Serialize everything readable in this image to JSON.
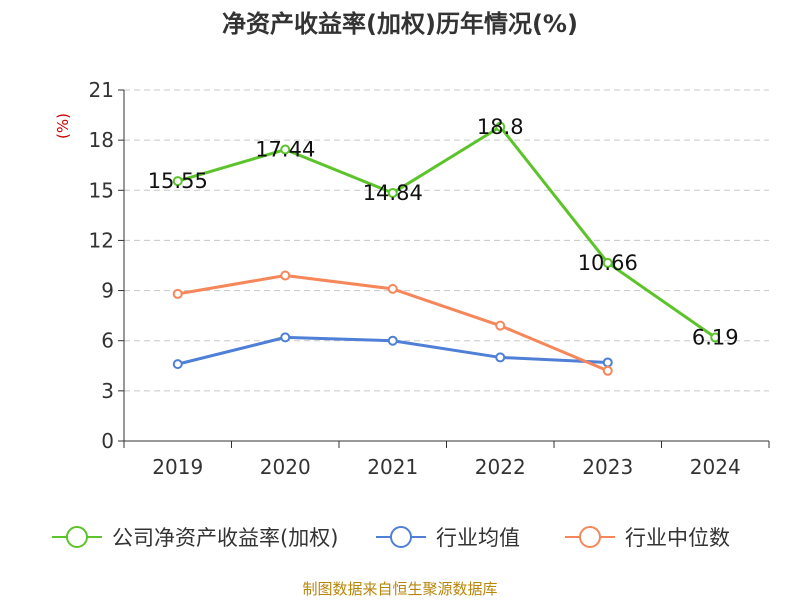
{
  "chart_data": {
    "type": "line",
    "title": "净资产收益率(加权)历年情况(%)",
    "ylabel": "(%)",
    "xlabel": "",
    "categories": [
      "2019",
      "2020",
      "2021",
      "2022",
      "2023",
      "2024"
    ],
    "ylim": [
      0,
      21
    ],
    "yticks": [
      0,
      3,
      6,
      9,
      12,
      15,
      18,
      21
    ],
    "grid": true,
    "legend_position": "bottom",
    "series": [
      {
        "name": "公司净资产收益率(加权)",
        "color": "#5cc42a",
        "values": [
          15.55,
          17.44,
          14.84,
          18.8,
          10.66,
          6.19
        ],
        "labels": [
          "15.55",
          "17.44",
          "14.84",
          "18.8",
          "10.66",
          "6.19"
        ]
      },
      {
        "name": "行业均值",
        "color": "#4f7fd6",
        "values": [
          4.6,
          6.2,
          6.0,
          5.0,
          4.7,
          null
        ]
      },
      {
        "name": "行业中位数",
        "color": "#f5875a",
        "values": [
          8.8,
          9.9,
          9.1,
          6.9,
          4.2,
          null
        ]
      }
    ]
  },
  "colors": {
    "axis": "#333333",
    "grid": "#c8c8c8",
    "unit": "#cc0000",
    "source": "#b8860b"
  },
  "source": "制图数据来自恒生聚源数据库"
}
